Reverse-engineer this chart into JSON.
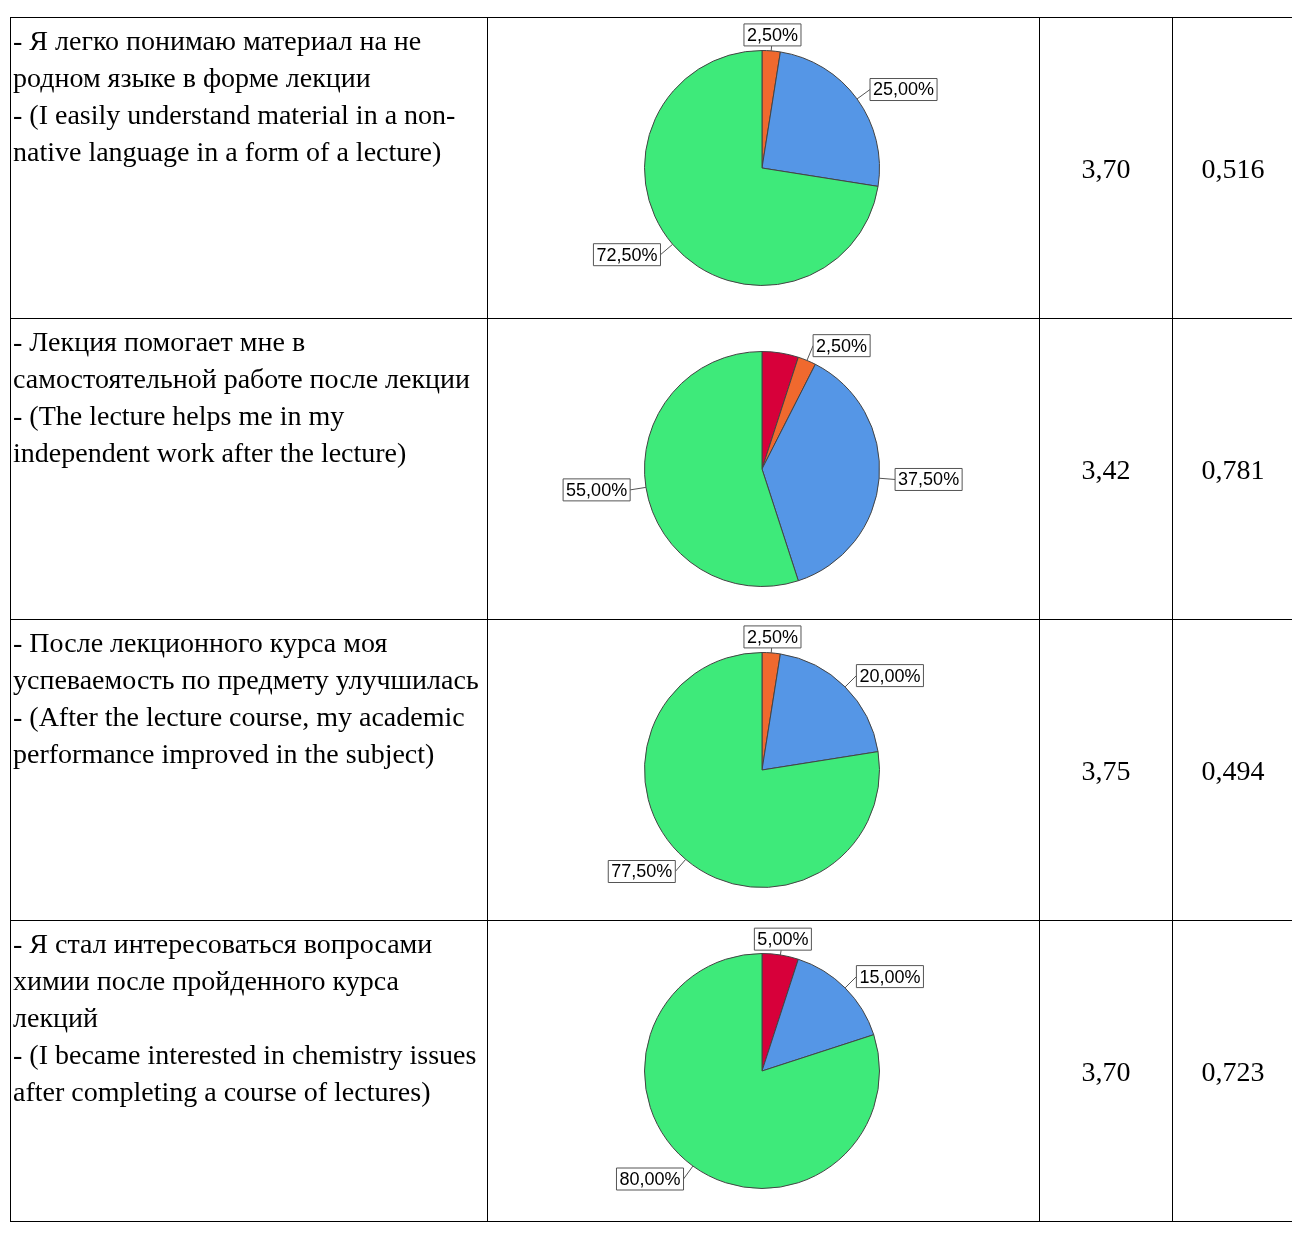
{
  "chart_data": [
    {
      "type": "pie",
      "title": "- Я легко понимаю материал на не родном языке в форме лекции\n- (I easily understand material in a non-native language in a form of a lecture)",
      "categories": [
        null,
        null,
        null
      ],
      "values": [
        2.5,
        25,
        72.5
      ],
      "colors": [
        "#f0692e",
        "#5596e6",
        "#3eea7a"
      ],
      "value_labels": [
        "2,50%",
        "25,00%",
        "72,50%"
      ],
      "annotations": [
        "3,70",
        "0,516"
      ]
    },
    {
      "type": "pie",
      "title": "- Лекция помогает мне в самостоятельной работе после лекции\n- (The lecture helps me in my independent work after the lecture)",
      "categories": [
        null,
        null,
        null,
        null
      ],
      "values": [
        5,
        2.5,
        37.5,
        55
      ],
      "colors": [
        "#d7003a",
        "#f0692e",
        "#5596e6",
        "#3eea7a"
      ],
      "value_labels": [
        null,
        "2,50%",
        "37,50%",
        "55,00%"
      ],
      "annotations": [
        "3,42",
        "0,781"
      ]
    },
    {
      "type": "pie",
      "title": "- После лекционного курса моя успеваемость по предмету улучшилась\n- (After the lecture course, my academic performance improved in the subject)",
      "categories": [
        null,
        null,
        null
      ],
      "values": [
        2.5,
        20,
        77.5
      ],
      "colors": [
        "#f0692e",
        "#5596e6",
        "#3eea7a"
      ],
      "value_labels": [
        "2,50%",
        "20,00%",
        "77,50%"
      ],
      "annotations": [
        "3,75",
        "0,494"
      ]
    },
    {
      "type": "pie",
      "title": "- Я стал интересоваться вопросами химии после пройденного курса лекций\n- (I became interested in chemistry issues after completing a course of lectures)",
      "categories": [
        null,
        null,
        null
      ],
      "values": [
        5,
        15,
        80
      ],
      "colors": [
        "#d7003a",
        "#5596e6",
        "#3eea7a"
      ],
      "value_labels": [
        "5,00%",
        "15,00%",
        "80,00%"
      ],
      "annotations": [
        "3,70",
        "0,723"
      ]
    }
  ]
}
